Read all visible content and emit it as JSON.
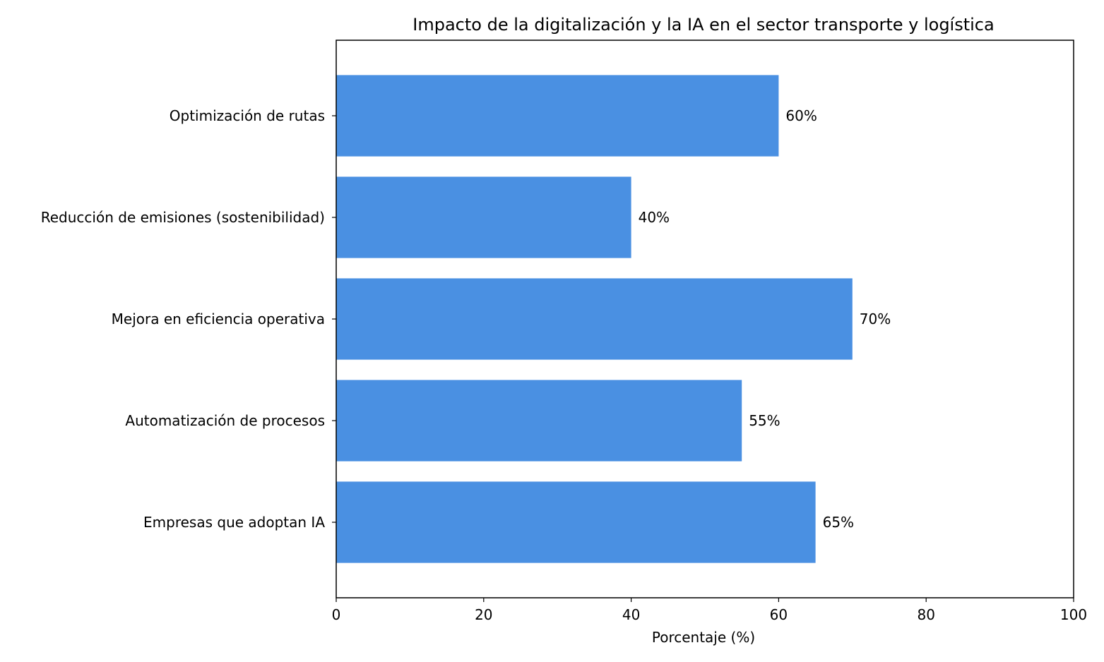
{
  "chart_data": {
    "type": "bar",
    "orientation": "horizontal",
    "title": "Impacto de la digitalización y la IA en el sector transporte y logística",
    "xlabel": "Porcentaje (%)",
    "ylabel": "",
    "xlim": [
      0,
      100
    ],
    "x_ticks": [
      0,
      20,
      40,
      60,
      80,
      100
    ],
    "categories": [
      "Empresas que adoptan IA",
      "Automatización de procesos",
      "Mejora en eficiencia operativa",
      "Reducción de emisiones (sostenibilidad)",
      "Optimización de rutas"
    ],
    "values": [
      65,
      55,
      70,
      40,
      60
    ],
    "data_labels": [
      "65%",
      "55%",
      "70%",
      "40%",
      "60%"
    ],
    "bar_color": "#4a90e2",
    "grid": false,
    "legend": "none"
  }
}
